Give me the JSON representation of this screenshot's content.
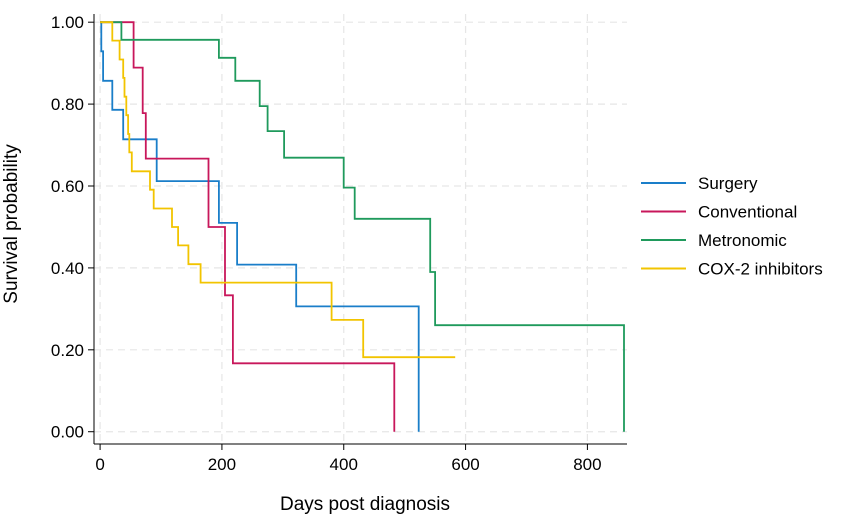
{
  "chart_data": {
    "type": "line",
    "subtype": "kaplan-meier-step",
    "title": "",
    "xlabel": "Days post diagnosis",
    "ylabel": "Survival probability",
    "xlim": [
      -10,
      865
    ],
    "ylim": [
      -0.03,
      1.02
    ],
    "xticks": [
      0,
      200,
      400,
      600,
      800
    ],
    "xtick_labels": [
      "0",
      "200",
      "400",
      "600",
      "800"
    ],
    "yticks": [
      0,
      0.2,
      0.4,
      0.6,
      0.8,
      1.0
    ],
    "ytick_labels": [
      "0.00",
      "0.20",
      "0.40",
      "0.60",
      "0.80",
      "1.00"
    ],
    "grid": true,
    "legend_position": "right",
    "series": [
      {
        "name": "Surgery",
        "color": "#1a7ec9",
        "points": [
          [
            0,
            1.0
          ],
          [
            2,
            1.0
          ],
          [
            2,
            0.929
          ],
          [
            5,
            0.929
          ],
          [
            5,
            0.857
          ],
          [
            20,
            0.857
          ],
          [
            20,
            0.786
          ],
          [
            38,
            0.786
          ],
          [
            38,
            0.714
          ],
          [
            93,
            0.714
          ],
          [
            93,
            0.612
          ],
          [
            195,
            0.612
          ],
          [
            195,
            0.51
          ],
          [
            225,
            0.51
          ],
          [
            225,
            0.408
          ],
          [
            322,
            0.408
          ],
          [
            322,
            0.306
          ],
          [
            523,
            0.306
          ],
          [
            523,
            0.0
          ]
        ]
      },
      {
        "name": "Conventional",
        "color": "#c8175b",
        "points": [
          [
            0,
            1.0
          ],
          [
            55,
            1.0
          ],
          [
            55,
            0.889
          ],
          [
            70,
            0.889
          ],
          [
            70,
            0.778
          ],
          [
            75,
            0.778
          ],
          [
            75,
            0.667
          ],
          [
            178,
            0.667
          ],
          [
            178,
            0.5
          ],
          [
            205,
            0.5
          ],
          [
            205,
            0.333
          ],
          [
            218,
            0.333
          ],
          [
            218,
            0.167
          ],
          [
            483,
            0.167
          ],
          [
            483,
            0.0
          ]
        ]
      },
      {
        "name": "Metronomic",
        "color": "#1f9a5c",
        "points": [
          [
            0,
            1.0
          ],
          [
            35,
            1.0
          ],
          [
            35,
            0.957
          ],
          [
            195,
            0.957
          ],
          [
            195,
            0.913
          ],
          [
            222,
            0.913
          ],
          [
            222,
            0.857
          ],
          [
            262,
            0.857
          ],
          [
            262,
            0.795
          ],
          [
            275,
            0.795
          ],
          [
            275,
            0.734
          ],
          [
            302,
            0.734
          ],
          [
            302,
            0.669
          ],
          [
            400,
            0.669
          ],
          [
            400,
            0.596
          ],
          [
            418,
            0.596
          ],
          [
            418,
            0.52
          ],
          [
            542,
            0.52
          ],
          [
            542,
            0.39
          ],
          [
            550,
            0.39
          ],
          [
            550,
            0.26
          ],
          [
            860,
            0.26
          ],
          [
            860,
            0.0
          ]
        ]
      },
      {
        "name": "COX-2 inhibitors",
        "color": "#f2c400",
        "points": [
          [
            0,
            1.0
          ],
          [
            20,
            1.0
          ],
          [
            20,
            0.955
          ],
          [
            32,
            0.955
          ],
          [
            32,
            0.909
          ],
          [
            38,
            0.909
          ],
          [
            38,
            0.864
          ],
          [
            40,
            0.864
          ],
          [
            40,
            0.818
          ],
          [
            43,
            0.818
          ],
          [
            43,
            0.773
          ],
          [
            46,
            0.773
          ],
          [
            46,
            0.727
          ],
          [
            48,
            0.727
          ],
          [
            48,
            0.682
          ],
          [
            52,
            0.682
          ],
          [
            52,
            0.636
          ],
          [
            82,
            0.636
          ],
          [
            82,
            0.591
          ],
          [
            88,
            0.591
          ],
          [
            88,
            0.545
          ],
          [
            118,
            0.545
          ],
          [
            118,
            0.5
          ],
          [
            128,
            0.5
          ],
          [
            128,
            0.455
          ],
          [
            145,
            0.455
          ],
          [
            145,
            0.409
          ],
          [
            165,
            0.409
          ],
          [
            165,
            0.364
          ],
          [
            380,
            0.364
          ],
          [
            380,
            0.273
          ],
          [
            432,
            0.273
          ],
          [
            432,
            0.182
          ],
          [
            583,
            0.182
          ]
        ]
      }
    ]
  }
}
